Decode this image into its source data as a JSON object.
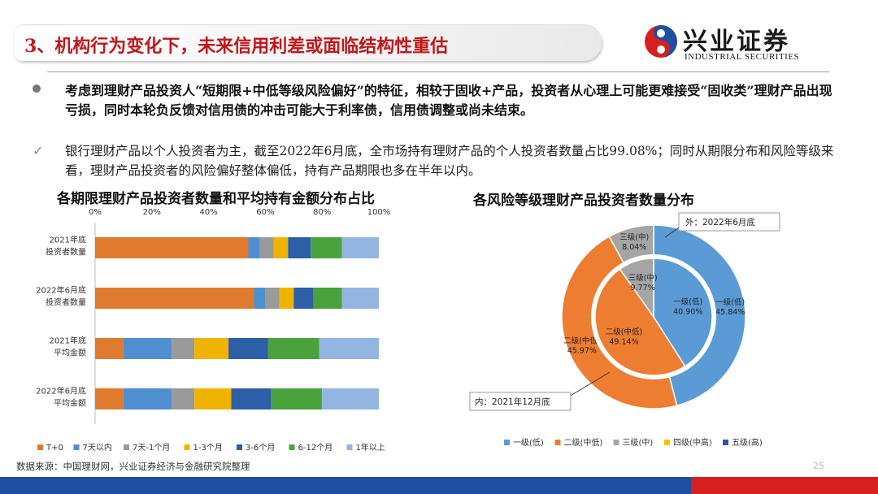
{
  "header": {
    "title": "3、机构行为变化下，未来信用利差或面临结构性重估",
    "logo_cn": "兴业证券",
    "logo_en": "INDUSTRIAL SECURITIES"
  },
  "bullets": {
    "primary": "考虑到理财产品投资人“短期限+中低等级风险偏好”的特征，相较于固收+产品，投资者从心理上可能更难接受“固收类”理财产品出现亏损，同时本轮负反馈对信用债的冲击可能大于利率债，信用债调整或尚未结束。",
    "secondary": "银行理财产品以个人投资者为主，截至2022年6月底，全市场持有理财产品的个人投资者数量占比99.08%；同时从期限分布和风险等级来看，理财产品投资者的风险偏好整体偏低，持有产品期限也多在半年以内。",
    "check_mark": "✓"
  },
  "chart_titles": {
    "left": "各期限理财产品投资者数量和平均持有金额分布占比",
    "right": "各风险等级理财产品投资者数量分布"
  },
  "chart_data": [
    {
      "type": "bar",
      "orientation": "horizontal",
      "stacked": true,
      "x_ticks": [
        "0%",
        "20%",
        "40%",
        "60%",
        "80%",
        "100%"
      ],
      "xlim": [
        0,
        100
      ],
      "categories": [
        "2021年底\n投资者数量",
        "2022年6月底\n投资者数量",
        "2021年底\n平均金额",
        "2022年6月底\n平均金额"
      ],
      "series": [
        {
          "name": "T+0",
          "color": "#e07a2e",
          "values": [
            54,
            56,
            10,
            10
          ]
        },
        {
          "name": "7天以内",
          "color": "#4f8fd0",
          "values": [
            4,
            4,
            17,
            17
          ]
        },
        {
          "name": "7天-1个月",
          "color": "#9a9a9a",
          "values": [
            5,
            5,
            8,
            8
          ]
        },
        {
          "name": "1-3个月",
          "color": "#f0b400",
          "values": [
            5,
            5,
            12,
            13
          ]
        },
        {
          "name": "3-6个月",
          "color": "#2d5fa8",
          "values": [
            8,
            7,
            14,
            14
          ]
        },
        {
          "name": "6-12个月",
          "color": "#4aa23c",
          "values": [
            11,
            10,
            18,
            18
          ]
        },
        {
          "name": "1年以上",
          "color": "#93b5e1",
          "values": [
            13,
            13,
            21,
            20
          ]
        }
      ],
      "legend_position": "bottom"
    },
    {
      "type": "pie",
      "subtype": "double-donut",
      "legend": [
        "一级(低)",
        "二级(中低)",
        "三级(中)",
        "四级(中高)",
        "五级(高)"
      ],
      "colors": {
        "一级(低)": "#5b9bd5",
        "二级(中低)": "#ed7d31",
        "三级(中)": "#a5a5a5",
        "四级(中高)": "#f6c100",
        "五级(高)": "#2e5aa0"
      },
      "outer": {
        "label": "外：2022年6月底",
        "slices": [
          {
            "name": "一级(低)",
            "value": 45.84,
            "label": "一级(低)\n45.84%"
          },
          {
            "name": "二级(中低)",
            "value": 45.97,
            "label": "二级(中低)\n45.97%"
          },
          {
            "name": "三级(中)",
            "value": 8.04,
            "label": "三级(中)\n8.04%"
          }
        ]
      },
      "inner": {
        "label": "内：2021年12月底",
        "slices": [
          {
            "name": "一级(低)",
            "value": 40.9,
            "label": "一级(低)\n40.90%"
          },
          {
            "name": "二级(中低)",
            "value": 49.14,
            "label": "二级(中低)\n49.14%"
          },
          {
            "name": "三级(中)",
            "value": 9.77,
            "label": "三级(中)\n9.77%"
          }
        ]
      },
      "legend_position": "bottom"
    }
  ],
  "footer": {
    "source": "数据来源：中国理财网，兴业证券经济与金融研究院整理",
    "page": "25"
  },
  "colors": {
    "title_red": "#c0171c",
    "bottom_blue": "#1f4fa0",
    "bottom_red": "#d6201f"
  }
}
